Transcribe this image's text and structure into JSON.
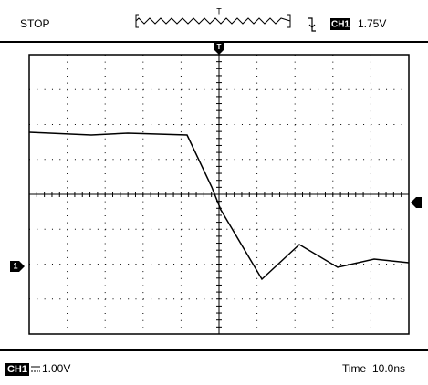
{
  "header": {
    "status": "STOP",
    "trigger_position": "T",
    "channel": "CH1",
    "trigger_level": "1.75V"
  },
  "screen": {
    "channel_marker": "1"
  },
  "footer": {
    "channel": "CH1",
    "volts_per_div": "1.00V",
    "time_label": "Time",
    "time_per_div": "10.0ns"
  }
}
